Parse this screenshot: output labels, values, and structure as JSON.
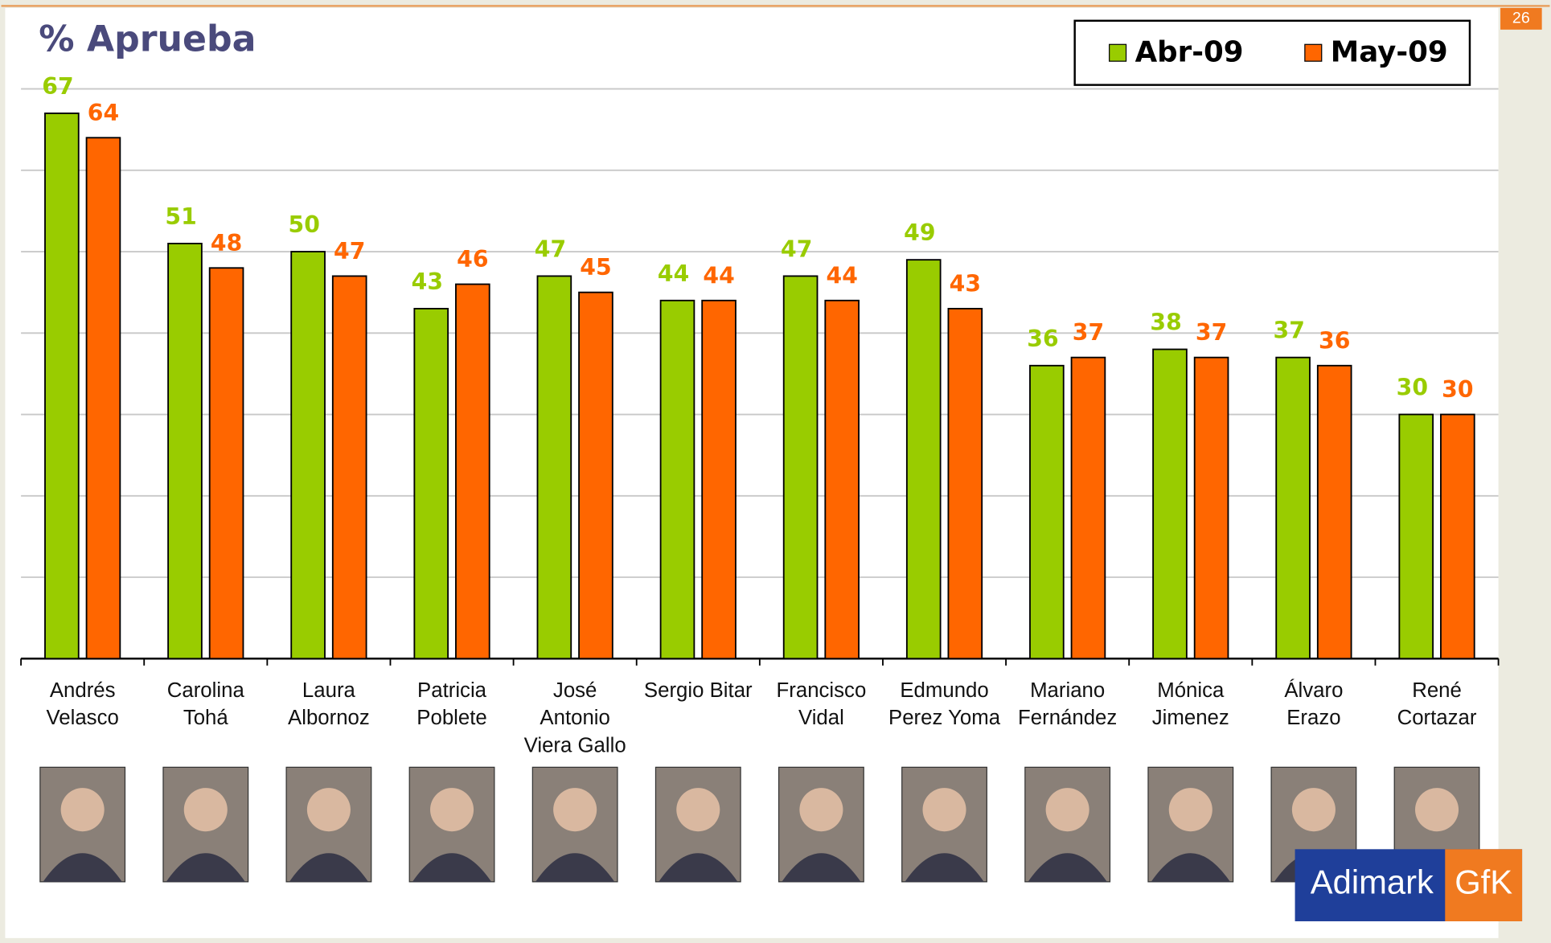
{
  "slide": {
    "page_number": "26",
    "logo_left": "Adimark",
    "logo_right": "GfK"
  },
  "chart_data": {
    "type": "bar",
    "title": "% Aprueba",
    "categories": [
      "Andrés Velasco",
      "Carolina Tohá",
      "Laura Albornoz",
      "Patricia Poblete",
      "José Antonio Viera Gallo",
      "Sergio Bitar",
      "Francisco Vidal",
      "Edmundo Perez Yoma",
      "Mariano Fernández",
      "Mónica Jimenez",
      "Álvaro Erazo",
      "René Cortazar"
    ],
    "series": [
      {
        "name": "Abr-09",
        "color": "#99cc00",
        "values": [
          67,
          51,
          50,
          43,
          47,
          44,
          47,
          49,
          36,
          38,
          37,
          30
        ]
      },
      {
        "name": "May-09",
        "color": "#ff6600",
        "values": [
          64,
          48,
          47,
          46,
          45,
          44,
          44,
          43,
          37,
          37,
          36,
          30
        ]
      }
    ],
    "ylim": [
      0,
      70
    ],
    "yticks": [
      0,
      10,
      20,
      30,
      40,
      50,
      60,
      70
    ],
    "grid": true,
    "legend": "top-right"
  }
}
